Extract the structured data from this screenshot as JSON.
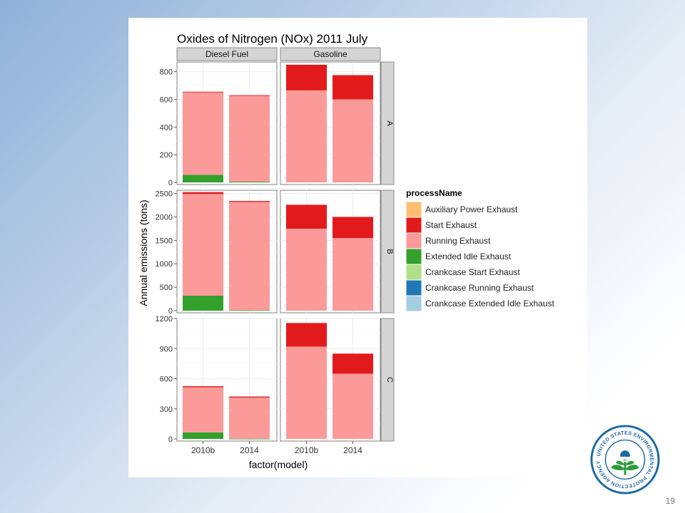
{
  "slide": {
    "page_number": "19"
  },
  "seal": {
    "ring_text": "UNITED STATES ENVIRONMENTAL PROTECTION AGENCY"
  },
  "chart_data": {
    "type": "bar",
    "stacked": true,
    "title": "Oxides of Nitrogen (NOx) 2011 July",
    "xlabel": "factor(model)",
    "ylabel": "Annual emissions (tons)",
    "categories": [
      "2010b",
      "2014"
    ],
    "column_facets": [
      "Diesel Fuel",
      "Gasoline"
    ],
    "row_facets": [
      {
        "name": "A",
        "ylim": [
          0,
          870
        ],
        "ticks": [
          0,
          200,
          400,
          600,
          800
        ]
      },
      {
        "name": "B",
        "ylim": [
          0,
          2570
        ],
        "ticks": [
          0,
          500,
          1000,
          1500,
          2000,
          2500
        ]
      },
      {
        "name": "C",
        "ylim": [
          0,
          1200
        ],
        "ticks": [
          0,
          300,
          600,
          900,
          1200
        ]
      }
    ],
    "legend": {
      "title": "processName",
      "position": "right",
      "entries": [
        {
          "name": "Auxiliary Power Exhaust",
          "color": "#fdbf6f"
        },
        {
          "name": "Start Exhaust",
          "color": "#e31a1c"
        },
        {
          "name": "Running Exhaust",
          "color": "#fb9a99"
        },
        {
          "name": "Extended Idle Exhaust",
          "color": "#33a02c"
        },
        {
          "name": "Crankcase Start Exhaust",
          "color": "#b2df8a"
        },
        {
          "name": "Crankcase Running Exhaust",
          "color": "#1f78b4"
        },
        {
          "name": "Crankcase Extended Idle Exhaust",
          "color": "#a6cee3"
        }
      ]
    },
    "panels": [
      {
        "row": "A",
        "fuel": "Diesel Fuel",
        "model": "2010b",
        "stack": {
          "Extended Idle Exhaust": 55,
          "Running Exhaust": 595,
          "Start Exhaust": 5
        }
      },
      {
        "row": "A",
        "fuel": "Diesel Fuel",
        "model": "2014",
        "stack": {
          "Extended Idle Exhaust": 5,
          "Running Exhaust": 620,
          "Start Exhaust": 5
        }
      },
      {
        "row": "A",
        "fuel": "Gasoline",
        "model": "2010b",
        "stack": {
          "Running Exhaust": 665,
          "Start Exhaust": 185
        }
      },
      {
        "row": "A",
        "fuel": "Gasoline",
        "model": "2014",
        "stack": {
          "Running Exhaust": 600,
          "Start Exhaust": 175
        }
      },
      {
        "row": "B",
        "fuel": "Diesel Fuel",
        "model": "2010b",
        "stack": {
          "Extended Idle Exhaust": 320,
          "Running Exhaust": 2170,
          "Start Exhaust": 40
        }
      },
      {
        "row": "B",
        "fuel": "Diesel Fuel",
        "model": "2014",
        "stack": {
          "Extended Idle Exhaust": 10,
          "Running Exhaust": 2310,
          "Start Exhaust": 20
        }
      },
      {
        "row": "B",
        "fuel": "Gasoline",
        "model": "2010b",
        "stack": {
          "Running Exhaust": 1750,
          "Start Exhaust": 510
        }
      },
      {
        "row": "B",
        "fuel": "Gasoline",
        "model": "2014",
        "stack": {
          "Running Exhaust": 1550,
          "Start Exhaust": 450
        }
      },
      {
        "row": "C",
        "fuel": "Diesel Fuel",
        "model": "2010b",
        "stack": {
          "Extended Idle Exhaust": 65,
          "Running Exhaust": 450,
          "Start Exhaust": 10
        }
      },
      {
        "row": "C",
        "fuel": "Diesel Fuel",
        "model": "2014",
        "stack": {
          "Extended Idle Exhaust": 2,
          "Running Exhaust": 410,
          "Start Exhaust": 10
        }
      },
      {
        "row": "C",
        "fuel": "Gasoline",
        "model": "2010b",
        "stack": {
          "Running Exhaust": 920,
          "Start Exhaust": 235
        }
      },
      {
        "row": "C",
        "fuel": "Gasoline",
        "model": "2014",
        "stack": {
          "Running Exhaust": 650,
          "Start Exhaust": 200
        }
      }
    ]
  }
}
